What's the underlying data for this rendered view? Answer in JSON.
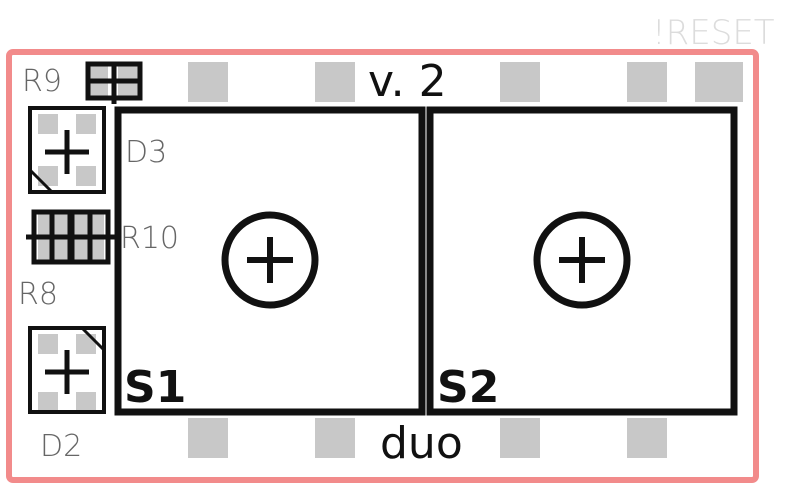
{
  "board": {
    "version_label": "v. 2",
    "name_label": "duo",
    "reset_label": "!RESET",
    "outline_color": "#f28b8b",
    "pad_color": "#c8c8c8",
    "silk_color": "#111111",
    "faint_text_color": "#dcdcdc"
  },
  "components": {
    "r9": "R9",
    "r10": "R10",
    "r8": "R8",
    "d3": "D3",
    "d2": "D2",
    "s1": "S1",
    "s2": "S2"
  }
}
